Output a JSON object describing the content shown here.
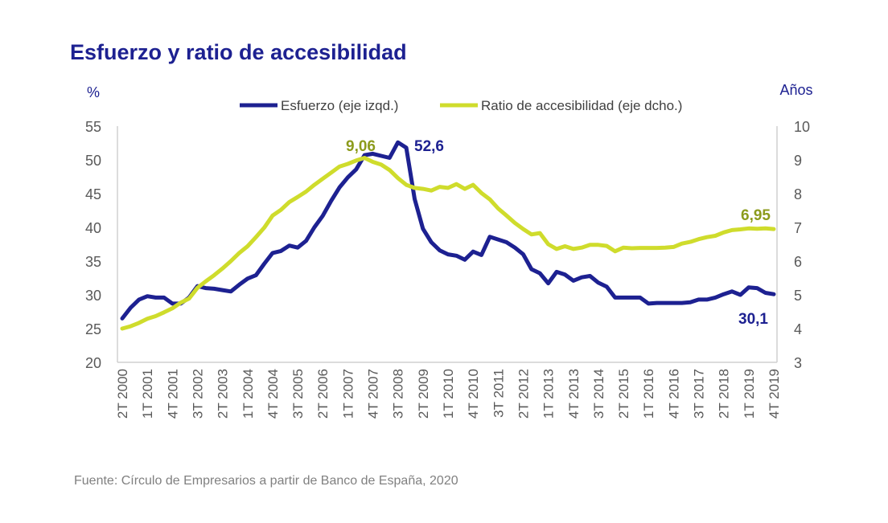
{
  "chart_data": {
    "type": "line",
    "title": "Esfuerzo y ratio de accesibilidad",
    "ylabel_left": "%",
    "ylabel_right": "Años",
    "ylim_left": [
      20,
      55
    ],
    "yticks_left": [
      20,
      25,
      30,
      35,
      40,
      45,
      50,
      55
    ],
    "ylim_right": [
      3,
      10
    ],
    "yticks_right": [
      3,
      4,
      5,
      6,
      7,
      8,
      9,
      10
    ],
    "grid": false,
    "legend_position": "top-center",
    "x_start": "2T 2000",
    "x_end": "4T 2019",
    "x_tick_labels": [
      "2T 2000",
      "1T 2001",
      "4T 2001",
      "3T 2002",
      "2T 2003",
      "1T 2004",
      "4T 2004",
      "3T 2005",
      "2T 2006",
      "1T 2007",
      "4T 2007",
      "3T 2008",
      "2T 2009",
      "1T 2010",
      "4T 2010",
      "3T 2011",
      "2T 2012",
      "1T 2013",
      "4T 2013",
      "3T 2014",
      "2T 2015",
      "1T 2016",
      "4T 2016",
      "3T 2017",
      "2T 2018",
      "1T 2019",
      "4T 2019"
    ],
    "series": [
      {
        "name": "Esfuerzo (eje izqd.)",
        "axis": "left",
        "color": "#1d2191",
        "values": [
          26.5,
          28.1,
          29.3,
          29.8,
          29.6,
          29.6,
          28.7,
          28.7,
          29.6,
          31.3,
          31.0,
          30.9,
          30.7,
          30.5,
          31.5,
          32.4,
          32.9,
          34.6,
          36.2,
          36.5,
          37.3,
          37.0,
          38.0,
          40.0,
          41.7,
          43.9,
          45.9,
          47.4,
          48.6,
          50.7,
          50.9,
          50.6,
          50.3,
          52.6,
          51.8,
          44.2,
          39.8,
          37.8,
          36.6,
          36.0,
          35.8,
          35.2,
          36.4,
          35.9,
          38.6,
          38.2,
          37.8,
          37.0,
          36.0,
          33.8,
          33.2,
          31.7,
          33.4,
          33.0,
          32.1,
          32.6,
          32.8,
          31.8,
          31.2,
          29.6,
          29.6,
          29.6,
          29.6,
          28.7,
          28.8,
          28.8,
          28.8,
          28.8,
          28.9,
          29.3,
          29.3,
          29.6,
          30.1,
          30.5,
          30.0,
          31.1,
          31.0,
          30.3,
          30.1
        ]
      },
      {
        "name": "Ratio de accesibilidad (eje dcho.)",
        "axis": "right",
        "color": "#cfdc2c",
        "values": [
          4.0,
          4.07,
          4.17,
          4.29,
          4.37,
          4.48,
          4.6,
          4.77,
          4.89,
          5.21,
          5.4,
          5.58,
          5.78,
          6.0,
          6.24,
          6.44,
          6.71,
          6.99,
          7.35,
          7.52,
          7.75,
          7.9,
          8.06,
          8.26,
          8.44,
          8.62,
          8.8,
          8.88,
          8.98,
          9.06,
          8.94,
          8.86,
          8.7,
          8.46,
          8.26,
          8.17,
          8.14,
          8.09,
          8.2,
          8.17,
          8.28,
          8.14,
          8.26,
          8.02,
          7.83,
          7.56,
          7.35,
          7.13,
          6.95,
          6.79,
          6.83,
          6.5,
          6.36,
          6.44,
          6.36,
          6.4,
          6.48,
          6.48,
          6.45,
          6.29,
          6.4,
          6.38,
          6.39,
          6.39,
          6.39,
          6.4,
          6.42,
          6.52,
          6.57,
          6.65,
          6.71,
          6.75,
          6.85,
          6.92,
          6.94,
          6.97,
          6.96,
          6.97,
          6.95
        ]
      }
    ],
    "annotations": [
      {
        "text": "9,06",
        "series": 1,
        "at": "4T 2007",
        "color": "#8c9b1c"
      },
      {
        "text": "52,6",
        "series": 0,
        "at": "3T 2008",
        "color": "#1d2191"
      },
      {
        "text": "6,95",
        "series": 1,
        "at": "4T 2019",
        "color": "#8c9b1c"
      },
      {
        "text": "30,1",
        "series": 0,
        "at": "4T 2019",
        "color": "#1d2191"
      }
    ],
    "source": "Fuente: Círculo de Empresarios a partir de Banco de España, 2020"
  }
}
